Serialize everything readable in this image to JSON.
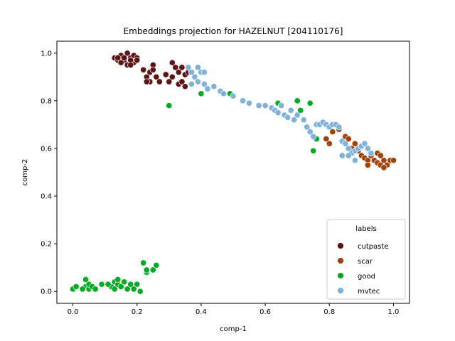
{
  "chart_data": {
    "type": "scatter",
    "title": "Embeddings projection for HAZELNUT [204110176]",
    "xlabel": "comp-1",
    "ylabel": "comp-2",
    "xlim": [
      -0.05,
      1.05
    ],
    "ylim": [
      -0.05,
      1.05
    ],
    "xticks": [
      "0.0",
      "0.2",
      "0.4",
      "0.6",
      "0.8",
      "1.0"
    ],
    "yticks": [
      "0.0",
      "0.2",
      "0.4",
      "0.6",
      "0.8",
      "1.0"
    ],
    "grid": false,
    "legend": {
      "title": "labels",
      "position": "lower-right"
    },
    "series": [
      {
        "name": "cutpaste",
        "color": "#5c1414",
        "points": [
          [
            0.13,
            0.98
          ],
          [
            0.14,
            0.97
          ],
          [
            0.15,
            0.99
          ],
          [
            0.16,
            0.97
          ],
          [
            0.17,
            1.0
          ],
          [
            0.18,
            0.98
          ],
          [
            0.19,
            0.99
          ],
          [
            0.2,
            0.98
          ],
          [
            0.15,
            0.96
          ],
          [
            0.17,
            0.95
          ],
          [
            0.19,
            0.96
          ],
          [
            0.18,
            0.97
          ],
          [
            0.16,
            0.98
          ],
          [
            0.2,
            0.97
          ],
          [
            0.14,
            0.98
          ],
          [
            0.18,
            0.95
          ],
          [
            0.22,
            0.93
          ],
          [
            0.23,
            0.9
          ],
          [
            0.24,
            0.92
          ],
          [
            0.25,
            0.95
          ],
          [
            0.25,
            0.93
          ],
          [
            0.26,
            0.9
          ],
          [
            0.27,
            0.88
          ],
          [
            0.29,
            0.91
          ],
          [
            0.31,
            0.96
          ],
          [
            0.32,
            0.94
          ],
          [
            0.33,
            0.92
          ],
          [
            0.34,
            0.94
          ],
          [
            0.35,
            0.91
          ],
          [
            0.33,
            0.87
          ],
          [
            0.34,
            0.88
          ],
          [
            0.35,
            0.86
          ],
          [
            0.31,
            0.9
          ],
          [
            0.3,
            0.88
          ],
          [
            0.24,
            0.88
          ],
          [
            0.23,
            0.88
          ],
          [
            0.36,
            0.92
          ]
        ]
      },
      {
        "name": "scar",
        "color": "#a0420a",
        "points": [
          [
            0.79,
            0.64
          ],
          [
            0.8,
            0.62
          ],
          [
            0.81,
            0.67
          ],
          [
            0.83,
            0.68
          ],
          [
            0.85,
            0.65
          ],
          [
            0.86,
            0.64
          ],
          [
            0.87,
            0.6
          ],
          [
            0.88,
            0.62
          ],
          [
            0.89,
            0.59
          ],
          [
            0.9,
            0.57
          ],
          [
            0.91,
            0.56
          ],
          [
            0.92,
            0.55
          ],
          [
            0.93,
            0.57
          ],
          [
            0.94,
            0.55
          ],
          [
            0.95,
            0.54
          ],
          [
            0.96,
            0.53
          ],
          [
            0.97,
            0.55
          ],
          [
            0.98,
            0.53
          ],
          [
            0.99,
            0.55
          ],
          [
            1.0,
            0.55
          ],
          [
            0.95,
            0.58
          ],
          [
            0.96,
            0.57
          ],
          [
            0.92,
            0.53
          ],
          [
            0.97,
            0.52
          ]
        ]
      },
      {
        "name": "good",
        "color": "#00aa22",
        "points": [
          [
            0.0,
            0.01
          ],
          [
            0.01,
            0.02
          ],
          [
            0.04,
            0.05
          ],
          [
            0.04,
            0.02
          ],
          [
            0.05,
            0.01
          ],
          [
            0.05,
            0.03
          ],
          [
            0.06,
            0.02
          ],
          [
            0.07,
            0.01
          ],
          [
            0.09,
            0.03
          ],
          [
            0.12,
            0.02
          ],
          [
            0.13,
            0.04
          ],
          [
            0.14,
            0.03
          ],
          [
            0.14,
            0.05
          ],
          [
            0.15,
            0.02
          ],
          [
            0.16,
            0.04
          ],
          [
            0.17,
            0.01
          ],
          [
            0.18,
            0.03
          ],
          [
            0.19,
            0.01
          ],
          [
            0.2,
            0.03
          ],
          [
            0.21,
            0.0
          ],
          [
            0.22,
            0.12
          ],
          [
            0.23,
            0.08
          ],
          [
            0.23,
            0.09
          ],
          [
            0.25,
            0.09
          ],
          [
            0.26,
            0.11
          ],
          [
            0.03,
            0.01
          ],
          [
            0.11,
            0.03
          ],
          [
            0.13,
            0.01
          ],
          [
            0.3,
            0.78
          ],
          [
            0.4,
            0.83
          ],
          [
            0.49,
            0.83
          ],
          [
            0.64,
            0.79
          ],
          [
            0.7,
            0.8
          ],
          [
            0.71,
            0.76
          ],
          [
            0.74,
            0.79
          ],
          [
            0.75,
            0.59
          ],
          [
            0.76,
            0.64
          ]
        ]
      },
      {
        "name": "mvtec",
        "color": "#7fb1d9",
        "points": [
          [
            0.36,
            0.94
          ],
          [
            0.37,
            0.92
          ],
          [
            0.38,
            0.9
          ],
          [
            0.39,
            0.94
          ],
          [
            0.4,
            0.92
          ],
          [
            0.41,
            0.87
          ],
          [
            0.42,
            0.85
          ],
          [
            0.37,
            0.87
          ],
          [
            0.39,
            0.88
          ],
          [
            0.44,
            0.86
          ],
          [
            0.46,
            0.84
          ],
          [
            0.47,
            0.83
          ],
          [
            0.5,
            0.82
          ],
          [
            0.53,
            0.8
          ],
          [
            0.55,
            0.79
          ],
          [
            0.58,
            0.78
          ],
          [
            0.6,
            0.78
          ],
          [
            0.62,
            0.77
          ],
          [
            0.63,
            0.76
          ],
          [
            0.64,
            0.75
          ],
          [
            0.65,
            0.78
          ],
          [
            0.66,
            0.74
          ],
          [
            0.67,
            0.73
          ],
          [
            0.68,
            0.76
          ],
          [
            0.69,
            0.72
          ],
          [
            0.7,
            0.74
          ],
          [
            0.72,
            0.72
          ],
          [
            0.73,
            0.69
          ],
          [
            0.74,
            0.67
          ],
          [
            0.75,
            0.65
          ],
          [
            0.76,
            0.7
          ],
          [
            0.77,
            0.7
          ],
          [
            0.78,
            0.71
          ],
          [
            0.79,
            0.7
          ],
          [
            0.8,
            0.69
          ],
          [
            0.81,
            0.7
          ],
          [
            0.82,
            0.7
          ],
          [
            0.83,
            0.69
          ],
          [
            0.84,
            0.63
          ],
          [
            0.85,
            0.62
          ],
          [
            0.86,
            0.6
          ],
          [
            0.87,
            0.58
          ],
          [
            0.88,
            0.59
          ],
          [
            0.89,
            0.6
          ],
          [
            0.9,
            0.61
          ],
          [
            0.91,
            0.62
          ],
          [
            0.92,
            0.6
          ],
          [
            0.93,
            0.58
          ],
          [
            0.84,
            0.57
          ],
          [
            0.86,
            0.57
          ],
          [
            0.88,
            0.55
          ],
          [
            0.41,
            0.92
          ]
        ]
      }
    ]
  }
}
